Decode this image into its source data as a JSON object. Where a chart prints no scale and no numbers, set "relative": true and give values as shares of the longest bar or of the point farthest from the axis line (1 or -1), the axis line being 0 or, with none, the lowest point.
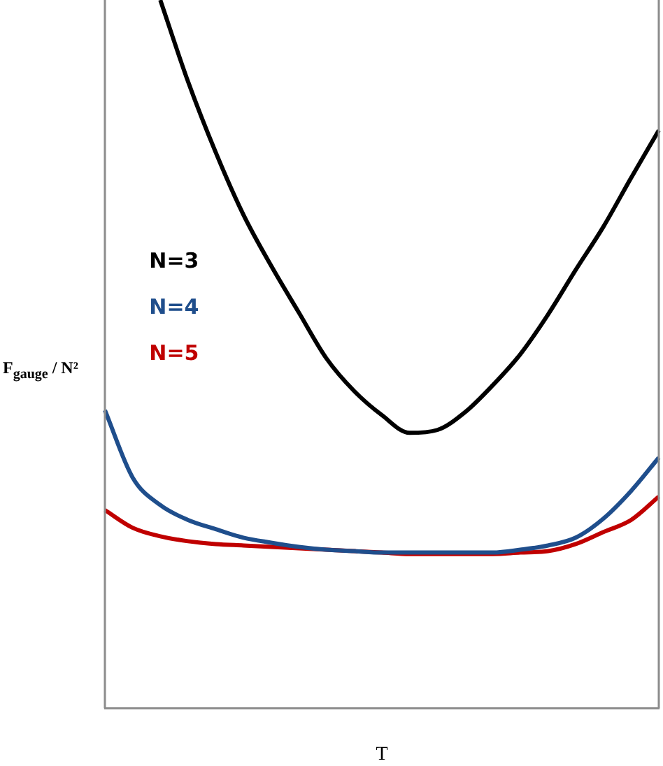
{
  "chart_data": {
    "type": "line",
    "relative": true,
    "xlabel": "T",
    "ylabel": "F$_{gauge}$ / N²",
    "legend": "left",
    "categories": [
      null,
      null,
      null,
      null,
      null,
      null,
      null,
      null,
      null,
      null,
      null,
      null,
      null,
      null,
      null,
      null,
      null,
      null,
      null,
      null,
      null
    ],
    "series": [
      {
        "name": "N=3",
        "color": "#000000",
        "values": [
          null,
          null,
          1,
          0.885,
          0.785,
          0.697,
          0.625,
          0.559,
          0.494,
          0.448,
          0.414,
          0.389,
          0.393,
          0.418,
          0.456,
          0.5,
          0.556,
          0.619,
          0.68,
          0.749,
          0.816
        ]
      },
      {
        "name": "N=4",
        "color": "#1f4e8c",
        "values": [
          0.421,
          0.326,
          0.287,
          0.266,
          0.253,
          0.241,
          0.234,
          0.228,
          0.224,
          0.222,
          0.22,
          0.22,
          0.22,
          0.22,
          0.22,
          0.224,
          0.23,
          0.241,
          0.268,
          0.307,
          0.354
        ]
      },
      {
        "name": "N=5",
        "color": "#c00000",
        "values": [
          0.28,
          0.255,
          0.243,
          0.236,
          0.232,
          0.23,
          0.228,
          0.226,
          0.224,
          0.222,
          0.22,
          0.218,
          0.218,
          0.218,
          0.218,
          0.22,
          0.222,
          0.232,
          0.249,
          0.266,
          0.299
        ]
      }
    ]
  }
}
